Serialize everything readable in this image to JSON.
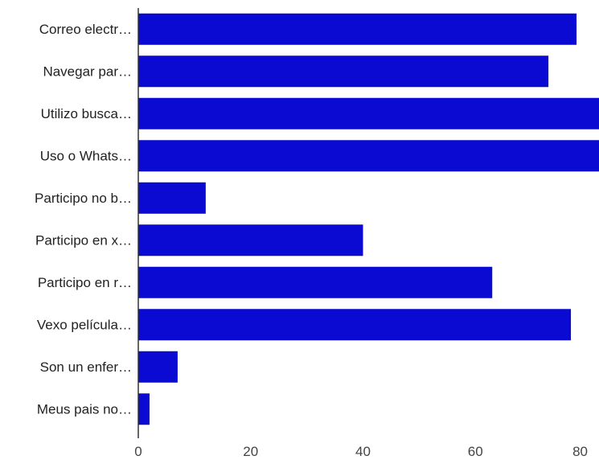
{
  "chart_data": {
    "type": "bar",
    "orientation": "horizontal",
    "title": "",
    "xlabel": "",
    "ylabel": "",
    "categories": [
      "Correo electr…",
      "Navegar par…",
      "Utilizo busca…",
      "Uso o Whats…",
      "Participo no b…",
      "Participo en x…",
      "Participo en r…",
      "Vexo película…",
      "Son un enfer…",
      "Meus pais no…"
    ],
    "values": [
      78,
      73,
      82,
      82,
      12,
      40,
      63,
      77,
      7,
      2
    ],
    "xlim": [
      0,
      82
    ],
    "x_ticks": [
      0,
      20,
      40,
      60,
      80
    ],
    "grid": false,
    "bar_color": "#0a0ad2",
    "axis_color": "#333333"
  }
}
